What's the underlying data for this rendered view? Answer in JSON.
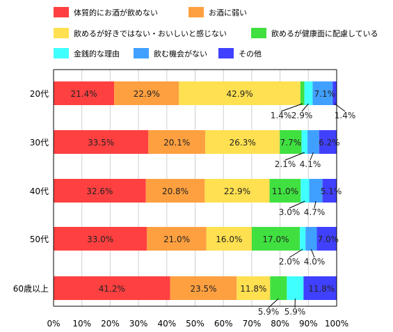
{
  "chart_data": {
    "type": "bar",
    "orientation": "horizontal",
    "stacked": true,
    "categories": [
      "20代",
      "30代",
      "40代",
      "50代",
      "60歳以上"
    ],
    "xlim": [
      0,
      100
    ],
    "x_ticks": [
      "0%",
      "10%",
      "20%",
      "30%",
      "40%",
      "50%",
      "60%",
      "70%",
      "80%",
      "90%",
      "100%"
    ],
    "grid": true,
    "legend_position": "top",
    "series": [
      {
        "name": "体質的にお酒が飲めない",
        "color": "#ff4040",
        "values": [
          21.4,
          33.5,
          32.6,
          33.0,
          41.2
        ],
        "labels": [
          "21.4%",
          "33.5%",
          "32.6%",
          "33.0%",
          "41.2%"
        ]
      },
      {
        "name": "お酒に弱い",
        "color": "#ffa040",
        "values": [
          22.9,
          20.1,
          20.8,
          21.0,
          23.5
        ],
        "labels": [
          "22.9%",
          "20.1%",
          "20.8%",
          "21.0%",
          "23.5%"
        ]
      },
      {
        "name": "飲めるが好きではない・おいしいと感じない",
        "color": "#ffe050",
        "values": [
          42.9,
          26.3,
          22.9,
          16.0,
          11.8
        ],
        "labels": [
          "42.9%",
          "26.3%",
          "22.9%",
          "16.0%",
          "11.8%"
        ]
      },
      {
        "name": "飲めるが健康面に配慮している",
        "color": "#40e040",
        "values": [
          1.4,
          7.7,
          11.0,
          17.0,
          5.9
        ],
        "labels": [
          "1.4%",
          "7.7%",
          "11.0%",
          "17.0%",
          "5.9%"
        ]
      },
      {
        "name": "金銭的な理由",
        "color": "#40ffff",
        "values": [
          2.9,
          2.1,
          3.0,
          2.0,
          5.9
        ],
        "labels": [
          "2.9%",
          "2.1%",
          "3.0%",
          "2.0%",
          "5.9%"
        ]
      },
      {
        "name": "飲む機会がない",
        "color": "#40a0ff",
        "values": [
          7.1,
          4.1,
          4.7,
          4.0,
          0
        ],
        "labels": [
          "7.1%",
          "4.1%",
          "4.7%",
          "4.0%",
          ""
        ]
      },
      {
        "name": "その他",
        "color": "#4040ff",
        "values": [
          1.4,
          6.2,
          5.1,
          7.0,
          11.8
        ],
        "labels": [
          "1.4%",
          "6.2%",
          "5.1%",
          "7.0%",
          "11.8%"
        ]
      }
    ]
  }
}
